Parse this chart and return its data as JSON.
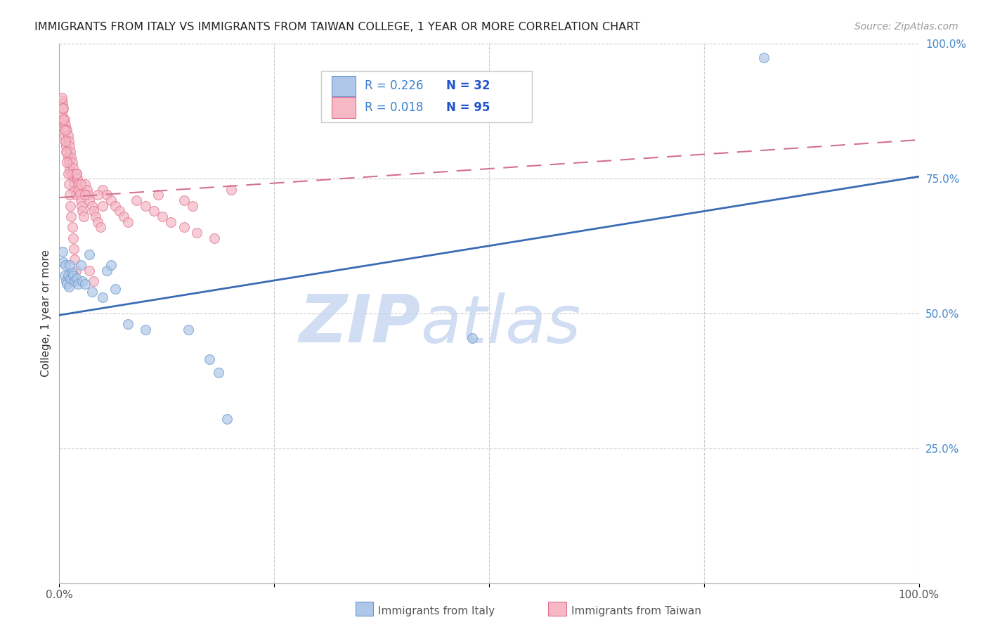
{
  "title": "IMMIGRANTS FROM ITALY VS IMMIGRANTS FROM TAIWAN COLLEGE, 1 YEAR OR MORE CORRELATION CHART",
  "source": "Source: ZipAtlas.com",
  "ylabel": "College, 1 year or more",
  "xlim": [
    0,
    1.0
  ],
  "ylim": [
    0,
    1.0
  ],
  "grid_color": "#cccccc",
  "background_color": "#ffffff",
  "watermark_color": "#c8d8f0",
  "italy_color": "#aec6e8",
  "italy_edge_color": "#6699cc",
  "italy_line_color": "#3b6bb5",
  "taiwan_color": "#f5b8c4",
  "taiwan_edge_color": "#e07090",
  "taiwan_line_color": "#d47090",
  "legend_R1_color": "#3b80d0",
  "legend_N1_color": "#2255bb",
  "legend_R2_color": "#3b80d0",
  "legend_N2_color": "#2255bb",
  "italy_line_y0": 0.497,
  "italy_line_y1": 0.754,
  "taiwan_line_y0": 0.715,
  "taiwan_line_y1": 0.822,
  "italy_x": [
    0.004,
    0.005,
    0.006,
    0.007,
    0.008,
    0.009,
    0.01,
    0.011,
    0.012,
    0.013,
    0.015,
    0.016,
    0.018,
    0.02,
    0.022,
    0.025,
    0.027,
    0.03,
    0.035,
    0.038,
    0.05,
    0.055,
    0.06,
    0.065,
    0.08,
    0.1,
    0.15,
    0.175,
    0.185,
    0.195,
    0.48,
    0.82
  ],
  "italy_y": [
    0.615,
    0.595,
    0.57,
    0.59,
    0.56,
    0.555,
    0.57,
    0.55,
    0.59,
    0.565,
    0.575,
    0.57,
    0.56,
    0.565,
    0.555,
    0.59,
    0.56,
    0.555,
    0.61,
    0.54,
    0.53,
    0.58,
    0.59,
    0.545,
    0.48,
    0.47,
    0.47,
    0.415,
    0.39,
    0.305,
    0.455,
    0.975
  ],
  "taiwan_x": [
    0.002,
    0.003,
    0.003,
    0.004,
    0.004,
    0.005,
    0.005,
    0.006,
    0.006,
    0.007,
    0.007,
    0.008,
    0.008,
    0.009,
    0.009,
    0.01,
    0.01,
    0.011,
    0.011,
    0.012,
    0.012,
    0.013,
    0.013,
    0.014,
    0.015,
    0.015,
    0.016,
    0.016,
    0.017,
    0.018,
    0.018,
    0.019,
    0.02,
    0.021,
    0.022,
    0.023,
    0.024,
    0.025,
    0.026,
    0.027,
    0.028,
    0.03,
    0.032,
    0.033,
    0.035,
    0.038,
    0.04,
    0.042,
    0.045,
    0.048,
    0.05,
    0.055,
    0.06,
    0.065,
    0.07,
    0.075,
    0.08,
    0.09,
    0.1,
    0.11,
    0.12,
    0.13,
    0.145,
    0.16,
    0.18,
    0.2,
    0.003,
    0.004,
    0.005,
    0.006,
    0.007,
    0.008,
    0.009,
    0.01,
    0.011,
    0.012,
    0.013,
    0.014,
    0.015,
    0.016,
    0.017,
    0.018,
    0.019,
    0.02,
    0.025,
    0.03,
    0.035,
    0.04,
    0.045,
    0.05,
    0.115,
    0.145,
    0.155
  ],
  "taiwan_y": [
    0.87,
    0.895,
    0.87,
    0.89,
    0.855,
    0.88,
    0.845,
    0.86,
    0.83,
    0.85,
    0.82,
    0.84,
    0.81,
    0.84,
    0.8,
    0.83,
    0.79,
    0.82,
    0.78,
    0.81,
    0.77,
    0.8,
    0.76,
    0.79,
    0.76,
    0.78,
    0.75,
    0.77,
    0.74,
    0.76,
    0.73,
    0.72,
    0.76,
    0.75,
    0.74,
    0.73,
    0.72,
    0.71,
    0.7,
    0.69,
    0.68,
    0.74,
    0.73,
    0.72,
    0.71,
    0.7,
    0.69,
    0.68,
    0.67,
    0.66,
    0.73,
    0.72,
    0.71,
    0.7,
    0.69,
    0.68,
    0.67,
    0.71,
    0.7,
    0.69,
    0.68,
    0.67,
    0.66,
    0.65,
    0.64,
    0.73,
    0.9,
    0.88,
    0.86,
    0.84,
    0.82,
    0.8,
    0.78,
    0.76,
    0.74,
    0.72,
    0.7,
    0.68,
    0.66,
    0.64,
    0.62,
    0.6,
    0.58,
    0.76,
    0.74,
    0.72,
    0.58,
    0.56,
    0.72,
    0.7,
    0.72,
    0.71,
    0.7
  ]
}
